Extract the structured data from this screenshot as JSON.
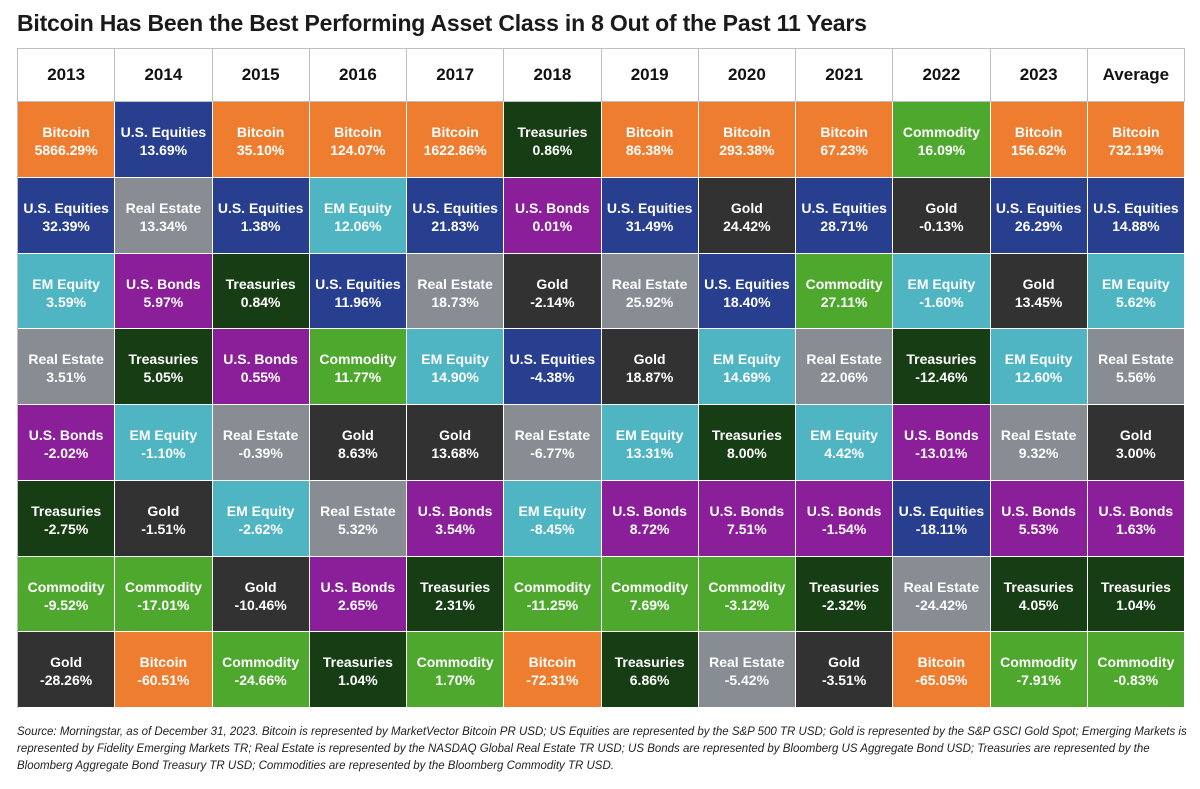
{
  "title": "Bitcoin Has Been the Best Performing Asset Class in 8 Out of the Past 11 Years",
  "source": "Source: Morningstar, as of December 31, 2023. Bitcoin is represented by MarketVector Bitcoin PR USD; US Equities are represented by the S&P 500 TR USD; Gold is represented by the S&P GSCI Gold Spot; Emerging Markets is represented by Fidelity Emerging Markets TR; Real Estate is represented by the NASDAQ Global Real Estate TR USD; US Bonds are represented by Bloomberg US Aggregate Bond USD; Treasuries are represented by the Bloomberg Aggregate Bond Treasury TR USD; Commodities are represented by the Bloomberg Commodity TR USD.",
  "colors": {
    "Bitcoin": "#ef7d30",
    "U.S. Equities": "#283f8f",
    "Real Estate": "#878d92",
    "EM Equity": "#4fb5c3",
    "U.S. Bonds": "#8b1f9a",
    "Treasuries": "#173d14",
    "Commodity": "#4ea82e",
    "Gold": "#323232"
  },
  "chart_data": {
    "type": "table",
    "title": "Bitcoin Has Been the Best Performing Asset Class in 8 Out of the Past 11 Years",
    "columns": [
      {
        "header": "2013",
        "cells": [
          {
            "name": "Bitcoin",
            "value": "5866.29%"
          },
          {
            "name": "U.S. Equities",
            "value": "32.39%"
          },
          {
            "name": "EM Equity",
            "value": "3.59%"
          },
          {
            "name": "Real Estate",
            "value": "3.51%"
          },
          {
            "name": "U.S. Bonds",
            "value": "-2.02%"
          },
          {
            "name": "Treasuries",
            "value": "-2.75%"
          },
          {
            "name": "Commodity",
            "value": "-9.52%"
          },
          {
            "name": "Gold",
            "value": "-28.26%"
          }
        ]
      },
      {
        "header": "2014",
        "cells": [
          {
            "name": "U.S. Equities",
            "value": "13.69%"
          },
          {
            "name": "Real Estate",
            "value": "13.34%"
          },
          {
            "name": "U.S. Bonds",
            "value": "5.97%"
          },
          {
            "name": "Treasuries",
            "value": "5.05%"
          },
          {
            "name": "EM Equity",
            "value": "-1.10%"
          },
          {
            "name": "Gold",
            "value": "-1.51%"
          },
          {
            "name": "Commodity",
            "value": "-17.01%"
          },
          {
            "name": "Bitcoin",
            "value": "-60.51%"
          }
        ]
      },
      {
        "header": "2015",
        "cells": [
          {
            "name": "Bitcoin",
            "value": "35.10%"
          },
          {
            "name": "U.S. Equities",
            "value": "1.38%"
          },
          {
            "name": "Treasuries",
            "value": "0.84%"
          },
          {
            "name": "U.S. Bonds",
            "value": "0.55%"
          },
          {
            "name": "Real Estate",
            "value": "-0.39%"
          },
          {
            "name": "EM Equity",
            "value": "-2.62%"
          },
          {
            "name": "Gold",
            "value": "-10.46%"
          },
          {
            "name": "Commodity",
            "value": "-24.66%"
          }
        ]
      },
      {
        "header": "2016",
        "cells": [
          {
            "name": "Bitcoin",
            "value": "124.07%"
          },
          {
            "name": "EM Equity",
            "value": "12.06%"
          },
          {
            "name": "U.S. Equities",
            "value": "11.96%"
          },
          {
            "name": "Commodity",
            "value": "11.77%"
          },
          {
            "name": "Gold",
            "value": "8.63%"
          },
          {
            "name": "Real Estate",
            "value": "5.32%"
          },
          {
            "name": "U.S. Bonds",
            "value": "2.65%"
          },
          {
            "name": "Treasuries",
            "value": "1.04%"
          }
        ]
      },
      {
        "header": "2017",
        "cells": [
          {
            "name": "Bitcoin",
            "value": "1622.86%"
          },
          {
            "name": "U.S. Equities",
            "value": "21.83%"
          },
          {
            "name": "Real Estate",
            "value": "18.73%"
          },
          {
            "name": "EM Equity",
            "value": "14.90%"
          },
          {
            "name": "Gold",
            "value": "13.68%"
          },
          {
            "name": "U.S. Bonds",
            "value": "3.54%"
          },
          {
            "name": "Treasuries",
            "value": "2.31%"
          },
          {
            "name": "Commodity",
            "value": "1.70%"
          }
        ]
      },
      {
        "header": "2018",
        "cells": [
          {
            "name": "Treasuries",
            "value": "0.86%"
          },
          {
            "name": "U.S. Bonds",
            "value": "0.01%"
          },
          {
            "name": "Gold",
            "value": "-2.14%"
          },
          {
            "name": "U.S. Equities",
            "value": "-4.38%"
          },
          {
            "name": "Real Estate",
            "value": "-6.77%"
          },
          {
            "name": "EM Equity",
            "value": "-8.45%"
          },
          {
            "name": "Commodity",
            "value": "-11.25%"
          },
          {
            "name": "Bitcoin",
            "value": "-72.31%"
          }
        ]
      },
      {
        "header": "2019",
        "cells": [
          {
            "name": "Bitcoin",
            "value": "86.38%"
          },
          {
            "name": "U.S. Equities",
            "value": "31.49%"
          },
          {
            "name": "Real Estate",
            "value": "25.92%"
          },
          {
            "name": "Gold",
            "value": "18.87%"
          },
          {
            "name": "EM Equity",
            "value": "13.31%"
          },
          {
            "name": "U.S. Bonds",
            "value": "8.72%"
          },
          {
            "name": "Commodity",
            "value": "7.69%"
          },
          {
            "name": "Treasuries",
            "value": "6.86%"
          }
        ]
      },
      {
        "header": "2020",
        "cells": [
          {
            "name": "Bitcoin",
            "value": "293.38%"
          },
          {
            "name": "Gold",
            "value": "24.42%"
          },
          {
            "name": "U.S. Equities",
            "value": "18.40%"
          },
          {
            "name": "EM Equity",
            "value": "14.69%"
          },
          {
            "name": "Treasuries",
            "value": "8.00%"
          },
          {
            "name": "U.S. Bonds",
            "value": "7.51%"
          },
          {
            "name": "Commodity",
            "value": "-3.12%"
          },
          {
            "name": "Real Estate",
            "value": "-5.42%"
          }
        ]
      },
      {
        "header": "2021",
        "cells": [
          {
            "name": "Bitcoin",
            "value": "67.23%"
          },
          {
            "name": "U.S. Equities",
            "value": "28.71%"
          },
          {
            "name": "Commodity",
            "value": "27.11%"
          },
          {
            "name": "Real Estate",
            "value": "22.06%"
          },
          {
            "name": "EM Equity",
            "value": "4.42%"
          },
          {
            "name": "U.S. Bonds",
            "value": "-1.54%"
          },
          {
            "name": "Treasuries",
            "value": "-2.32%"
          },
          {
            "name": "Gold",
            "value": "-3.51%"
          }
        ]
      },
      {
        "header": "2022",
        "cells": [
          {
            "name": "Commodity",
            "value": "16.09%"
          },
          {
            "name": "Gold",
            "value": "-0.13%"
          },
          {
            "name": "EM Equity",
            "value": "-1.60%"
          },
          {
            "name": "Treasuries",
            "value": "-12.46%"
          },
          {
            "name": "U.S. Bonds",
            "value": "-13.01%"
          },
          {
            "name": "U.S. Equities",
            "value": "-18.11%"
          },
          {
            "name": "Real Estate",
            "value": "-24.42%"
          },
          {
            "name": "Bitcoin",
            "value": "-65.05%"
          }
        ]
      },
      {
        "header": "2023",
        "cells": [
          {
            "name": "Bitcoin",
            "value": "156.62%"
          },
          {
            "name": "U.S. Equities",
            "value": "26.29%"
          },
          {
            "name": "Gold",
            "value": "13.45%"
          },
          {
            "name": "EM Equity",
            "value": "12.60%"
          },
          {
            "name": "Real Estate",
            "value": "9.32%"
          },
          {
            "name": "U.S. Bonds",
            "value": "5.53%"
          },
          {
            "name": "Treasuries",
            "value": "4.05%"
          },
          {
            "name": "Commodity",
            "value": "-7.91%"
          }
        ]
      },
      {
        "header": "Average",
        "cells": [
          {
            "name": "Bitcoin",
            "value": "732.19%"
          },
          {
            "name": "U.S. Equities",
            "value": "14.88%"
          },
          {
            "name": "EM Equity",
            "value": "5.62%"
          },
          {
            "name": "Real Estate",
            "value": "5.56%"
          },
          {
            "name": "Gold",
            "value": "3.00%"
          },
          {
            "name": "U.S. Bonds",
            "value": "1.63%"
          },
          {
            "name": "Treasuries",
            "value": "1.04%"
          },
          {
            "name": "Commodity",
            "value": "-0.83%"
          }
        ]
      }
    ]
  }
}
